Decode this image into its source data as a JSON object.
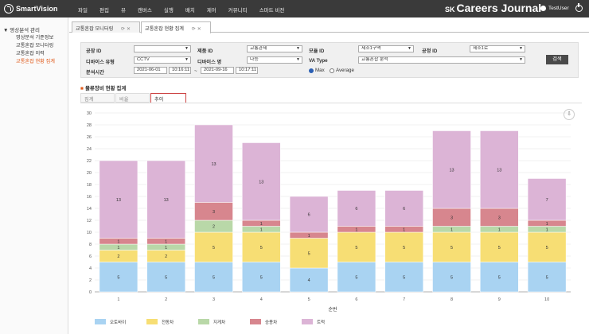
{
  "app": {
    "logo": "SmartVision",
    "brand_prefix": "SK",
    "brand": "Careers Journal",
    "user": "TestUser"
  },
  "menu": [
    "파일",
    "편집",
    "뷰",
    "캔버스",
    "실행",
    "배치",
    "제어",
    "커뮤니티",
    "스마트 비전"
  ],
  "sidebar": {
    "header": "▼ 영상분석 관리",
    "items": [
      {
        "label": "영상분석 기준정보",
        "active": false
      },
      {
        "label": "교통혼잡 모니터링",
        "active": false
      },
      {
        "label": "교통혼잡 이력",
        "active": false
      },
      {
        "label": "교통혼잡 현황 집계",
        "active": true
      }
    ]
  },
  "page_tabs": [
    {
      "label": "교통혼잡 모니터링",
      "active": false
    },
    {
      "label": "교통혼잡 현황 집계",
      "active": true
    }
  ],
  "page_tab_icons": [
    "refresh-icon",
    "close-icon"
  ],
  "filter": {
    "plant_label": "공장 ID",
    "plant_value": "",
    "product_label": "제품 ID",
    "product_value": "교통관제",
    "module_label": "모듈 ID",
    "module_value": "제소1구역",
    "plant2_label": "공정 ID",
    "plant2_value": "제소1로",
    "device_type_label": "디바이스 유형",
    "device_type_value": "CCTV",
    "device_name_label": "디바이스 명",
    "device_name_value": "다능",
    "va_type_label": "VA Type",
    "va_type_value": "교통혼잡 분석",
    "period_label": "분석시간",
    "start_date": "2021-06-01",
    "start_time": "10:16:11",
    "range_sep": "~",
    "end_date": "2021-09-16",
    "end_time": "10:17:11",
    "radio_max": "Max",
    "radio_avg": "Average",
    "selected": "Max",
    "search_button": "검색"
  },
  "section_title": "물류장비 현황 집계",
  "sub_tabs": [
    {
      "label": "집계",
      "active": false
    },
    {
      "label": "비율",
      "active": false
    },
    {
      "label": "추이",
      "active": true
    }
  ],
  "chart_data": {
    "type": "bar",
    "stacked": true,
    "categories": [
      "1",
      "2",
      "3",
      "4",
      "5",
      "6",
      "7",
      "8",
      "9",
      "10"
    ],
    "xlabel": "순번",
    "ylim": [
      0,
      30
    ],
    "yticks": [
      0,
      2,
      4,
      6,
      8,
      10,
      12,
      14,
      16,
      18,
      20,
      22,
      24,
      26,
      28,
      30
    ],
    "grid": true,
    "legend_position": "bottom-left",
    "series": [
      {
        "name": "오토바이",
        "color": "#a9d3f2",
        "values": [
          5,
          5,
          5,
          5,
          4,
          5,
          5,
          5,
          5,
          5
        ]
      },
      {
        "name": "전동차",
        "color": "#f7de74",
        "values": [
          2,
          2,
          5,
          5,
          5,
          5,
          5,
          5,
          5,
          5
        ]
      },
      {
        "name": "지게차",
        "color": "#b9d8a8",
        "values": [
          1,
          1,
          2,
          1,
          0,
          0,
          0,
          1,
          1,
          1
        ]
      },
      {
        "name": "승용차",
        "color": "#d7868e",
        "values": [
          1,
          1,
          3,
          1,
          1,
          1,
          1,
          3,
          3,
          1
        ]
      },
      {
        "name": "트럭",
        "color": "#dcb4d6",
        "values": [
          13,
          13,
          13,
          13,
          6,
          6,
          6,
          13,
          13,
          7
        ]
      }
    ]
  }
}
